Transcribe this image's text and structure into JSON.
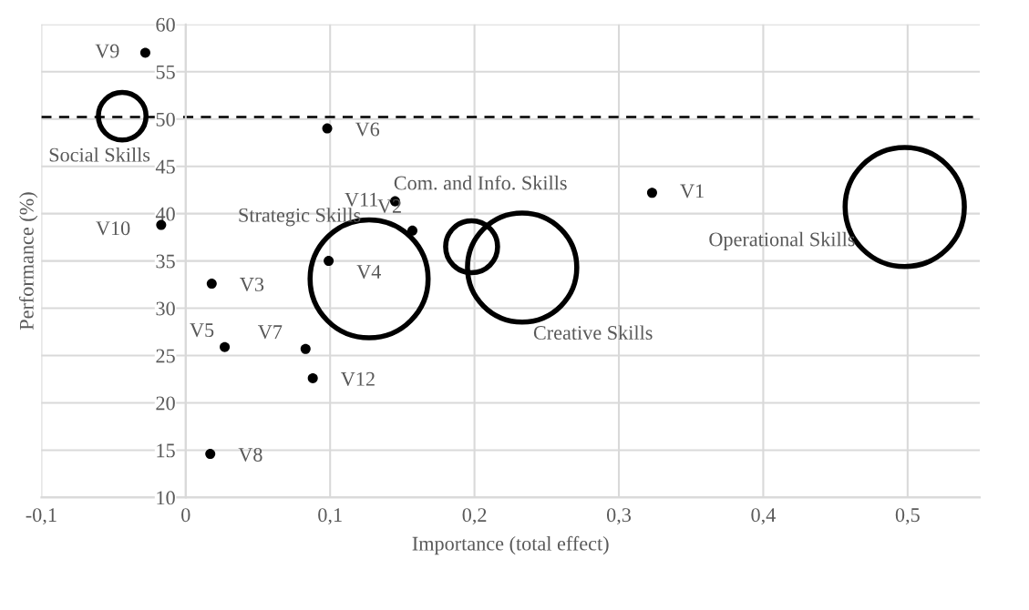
{
  "chart_data": {
    "type": "scatter",
    "xlabel": "Importance (total effect)",
    "ylabel": "Performance (%)",
    "xlim": [
      -0.1,
      0.55
    ],
    "ylim": [
      10,
      60
    ],
    "xticks": [
      {
        "value": -0.1,
        "label": "-0,1"
      },
      0,
      {
        "value": 0.1,
        "label": "0,1"
      },
      {
        "value": 0.2,
        "label": "0,2"
      },
      {
        "value": 0.3,
        "label": "0,3"
      },
      {
        "value": 0.4,
        "label": "0,4"
      },
      {
        "value": 0.5,
        "label": "0,5"
      }
    ],
    "yticks": [
      10,
      15,
      20,
      25,
      30,
      35,
      40,
      45,
      50,
      55,
      60
    ],
    "grid": true,
    "marker": "circle",
    "series": [
      {
        "type": "scatter",
        "color": "#000000",
        "x": [
          0.323,
          0.157,
          0.018,
          0.099,
          0.027,
          0.098,
          0.083,
          0.017,
          -0.028,
          -0.017,
          0.145,
          0.088
        ],
        "values": [
          42.2,
          38.2,
          32.6,
          35.0,
          25.9,
          49.0,
          25.7,
          14.6,
          57.0,
          38.8,
          41.3,
          22.6
        ]
      },
      {
        "type": "bubble",
        "color": "#000000",
        "x": [
          -0.044,
          0.127,
          0.198,
          0.233,
          0.498
        ],
        "values": [
          50.3,
          33.1,
          36.5,
          34.3,
          40.7
        ],
        "sizes": [
          0.16,
          0.98,
          0.19,
          0.84,
          1
        ]
      }
    ],
    "ref_lines": [
      {
        "axis": "y",
        "value": 50.2,
        "color": "#000000",
        "line_style": "dashed"
      }
    ],
    "annotations": [
      {
        "text": "V1",
        "x": 0.323,
        "y": 42.2
      },
      {
        "text": "V2",
        "x": 0.157,
        "y": 38.2
      },
      {
        "text": "V3",
        "x": 0.018,
        "y": 32.6
      },
      {
        "text": "V4",
        "x": 0.099,
        "y": 35.0
      },
      {
        "text": "V5",
        "x": 0.027,
        "y": 25.9
      },
      {
        "text": "V6",
        "x": 0.098,
        "y": 49.0
      },
      {
        "text": "V7",
        "x": 0.083,
        "y": 25.7
      },
      {
        "text": "V8",
        "x": 0.017,
        "y": 14.6
      },
      {
        "text": "V9",
        "x": -0.028,
        "y": 57.0
      },
      {
        "text": "V10",
        "x": -0.017,
        "y": 38.8
      },
      {
        "text": "V11",
        "x": 0.145,
        "y": 41.3
      },
      {
        "text": "V12",
        "x": 0.088,
        "y": 22.6
      },
      "Social Skills",
      "Strategic Skills",
      "Com. and Info. Skills",
      "Creative Skills",
      "Operational Skills"
    ]
  }
}
